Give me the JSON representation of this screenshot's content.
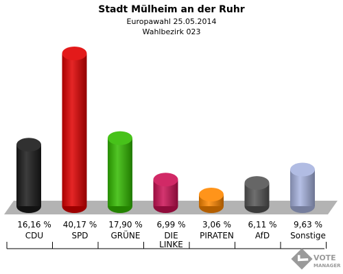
{
  "header": {
    "title": "Stadt Mülheim an der Ruhr",
    "subtitle1": "Europawahl 25.05.2014",
    "subtitle2": "Wahlbezirk 023"
  },
  "chart_data": {
    "type": "bar",
    "title": "Stadt Mülheim an der Ruhr",
    "categories": [
      "CDU",
      "SPD",
      "GRÜNE",
      "DIE LINKE",
      "PIRATEN",
      "AfD",
      "Sonstige"
    ],
    "category_lines": [
      [
        "CDU"
      ],
      [
        "SPD"
      ],
      [
        "GRÜNE"
      ],
      [
        "DIE",
        "LINKE"
      ],
      [
        "PIRATEN"
      ],
      [
        "AfD"
      ],
      [
        "Sonstige"
      ]
    ],
    "values": [
      16.16,
      40.17,
      17.9,
      6.99,
      3.06,
      6.11,
      9.63
    ],
    "value_labels": [
      "16,16 %",
      "40,17 %",
      "17,90 %",
      "6,99 %",
      "3,06 %",
      "6,11 %",
      "9,63 %"
    ],
    "colors": [
      "#1a1a1a",
      "#e00000",
      "#33bb00",
      "#cc1155",
      "#ff8800",
      "#555555",
      "#a8b4e0"
    ],
    "unit": "%",
    "grid": false,
    "legend": "none"
  },
  "logo": {
    "line1": "VOTE",
    "line2": "MANAGER"
  }
}
